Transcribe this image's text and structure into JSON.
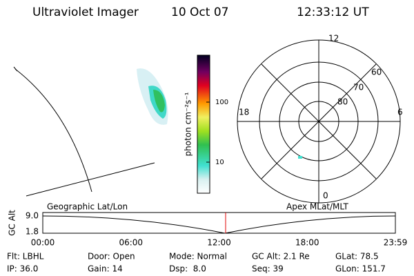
{
  "header": {
    "title": "Ultraviolet Imager",
    "date": "10 Oct 07",
    "time": "12:33:12 UT"
  },
  "colorbar": {
    "label": "photon cm⁻²s⁻¹",
    "ticks": [
      "100",
      "10"
    ]
  },
  "polar": {
    "mlt_labels": [
      "12",
      "18",
      "6",
      "0"
    ],
    "lat_labels": [
      "60",
      "70",
      "80"
    ]
  },
  "altitude_plot": {
    "ylabel": "GC Alt",
    "yticks": [
      "9.0",
      "1.8"
    ],
    "left_label": "Geographic Lat/Lon",
    "right_label": "Apex MLat/MLT",
    "xticks": [
      "00:00",
      "06:00",
      "12:00",
      "18:00",
      "23:59"
    ]
  },
  "status": {
    "rows": [
      [
        "Flt: LBHL",
        "Door: Open",
        "Mode: Normal",
        "GC Alt: 2.1 Re",
        "GLat: 78.5"
      ],
      [
        "IP: 36.0",
        "Gain: 14",
        "Dsp:  8.0",
        "Seq: 39",
        "GLon: 151.7"
      ]
    ]
  }
}
